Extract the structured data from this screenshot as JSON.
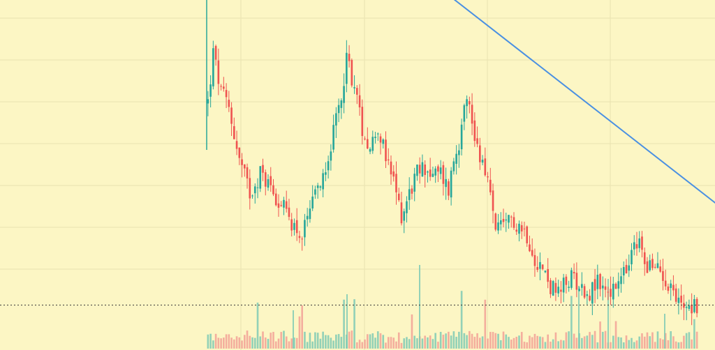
{
  "chart_data": {
    "type": "candlestick",
    "title": "",
    "xlabel": "",
    "ylabel": "",
    "grid": true,
    "legend": "none",
    "colors": {
      "background": "#fcf6c4",
      "grid": "#e9e2b0",
      "up": "#26a69a",
      "down": "#ef5350",
      "trendline": "#4a90e2",
      "price_line": "#333333",
      "volume_up": "#7fcab5",
      "volume_down": "#f2a196"
    },
    "ylim": [
      0,
      100
    ],
    "price_line_value": 7,
    "trendline": {
      "from": {
        "x": 85,
        "y": 108
      },
      "to": {
        "x": 240,
        "y": 7
      }
    },
    "close_path": [
      [
        0,
        70
      ],
      [
        2,
        85
      ],
      [
        5,
        73
      ],
      [
        8,
        68
      ],
      [
        12,
        52
      ],
      [
        16,
        42
      ],
      [
        20,
        48
      ],
      [
        24,
        44
      ],
      [
        28,
        38
      ],
      [
        32,
        33
      ],
      [
        36,
        28
      ],
      [
        40,
        38
      ],
      [
        44,
        48
      ],
      [
        48,
        60
      ],
      [
        51,
        72
      ],
      [
        53,
        84
      ],
      [
        56,
        75
      ],
      [
        59,
        62
      ],
      [
        62,
        56
      ],
      [
        65,
        63
      ],
      [
        68,
        52
      ],
      [
        71,
        45
      ],
      [
        74,
        35
      ],
      [
        77,
        42
      ],
      [
        80,
        48
      ],
      [
        83,
        50
      ],
      [
        86,
        47
      ],
      [
        89,
        48
      ],
      [
        92,
        43
      ],
      [
        94,
        52
      ],
      [
        96,
        58
      ],
      [
        98,
        72
      ],
      [
        100,
        68
      ],
      [
        103,
        56
      ],
      [
        106,
        50
      ],
      [
        108,
        40
      ],
      [
        110,
        32
      ],
      [
        113,
        30
      ],
      [
        116,
        34
      ],
      [
        119,
        32
      ],
      [
        122,
        29
      ],
      [
        125,
        22
      ],
      [
        128,
        18
      ],
      [
        131,
        13
      ],
      [
        134,
        10
      ],
      [
        137,
        14
      ],
      [
        140,
        16
      ],
      [
        143,
        12
      ],
      [
        146,
        11
      ],
      [
        149,
        14
      ],
      [
        152,
        12
      ],
      [
        155,
        11
      ],
      [
        158,
        15
      ],
      [
        161,
        19
      ],
      [
        163,
        25
      ],
      [
        165,
        26
      ],
      [
        167,
        21
      ],
      [
        170,
        18
      ],
      [
        173,
        18
      ],
      [
        176,
        14
      ],
      [
        178,
        12
      ],
      [
        179,
        8
      ],
      [
        182,
        8
      ],
      [
        185,
        7
      ],
      [
        188,
        7
      ]
    ]
  }
}
